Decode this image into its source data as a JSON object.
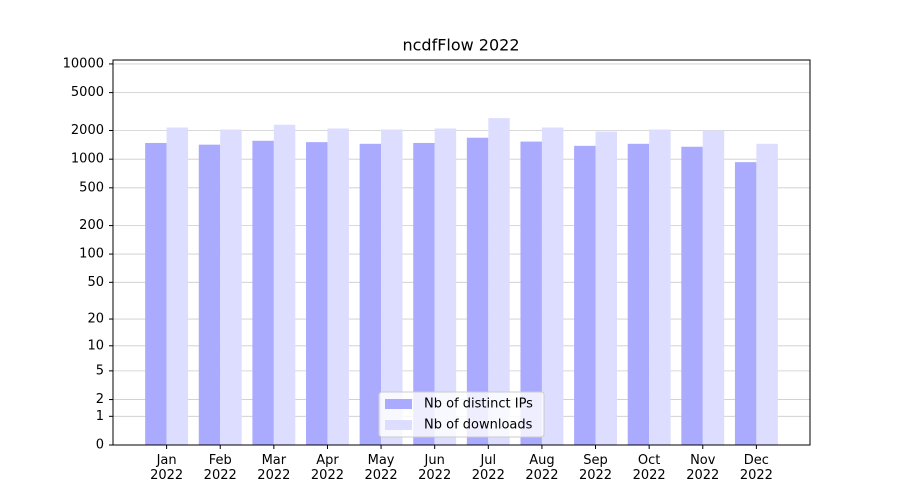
{
  "chart_data": {
    "type": "bar",
    "title": "ncdfFlow 2022",
    "categories": [
      "Jan 2022",
      "Feb 2022",
      "Mar 2022",
      "Apr 2022",
      "May 2022",
      "Jun 2022",
      "Jul 2022",
      "Aug 2022",
      "Sep 2022",
      "Oct 2022",
      "Nov 2022",
      "Dec 2022"
    ],
    "series": [
      {
        "name": "Nb of distinct IPs",
        "color": "#aaaaff",
        "values": [
          1480,
          1420,
          1560,
          1510,
          1450,
          1480,
          1680,
          1530,
          1380,
          1450,
          1350,
          930
        ]
      },
      {
        "name": "Nb of downloads",
        "color": "#ddddff",
        "values": [
          2150,
          2050,
          2300,
          2100,
          2050,
          2100,
          2700,
          2150,
          1950,
          2050,
          2000,
          1450
        ]
      }
    ],
    "y_scale": "log1p",
    "ylim": [
      0,
      11000
    ],
    "yticks": [
      0,
      1,
      2,
      5,
      10,
      20,
      50,
      100,
      200,
      500,
      1000,
      2000,
      5000,
      10000
    ],
    "grid": true,
    "legend": "lower center"
  }
}
